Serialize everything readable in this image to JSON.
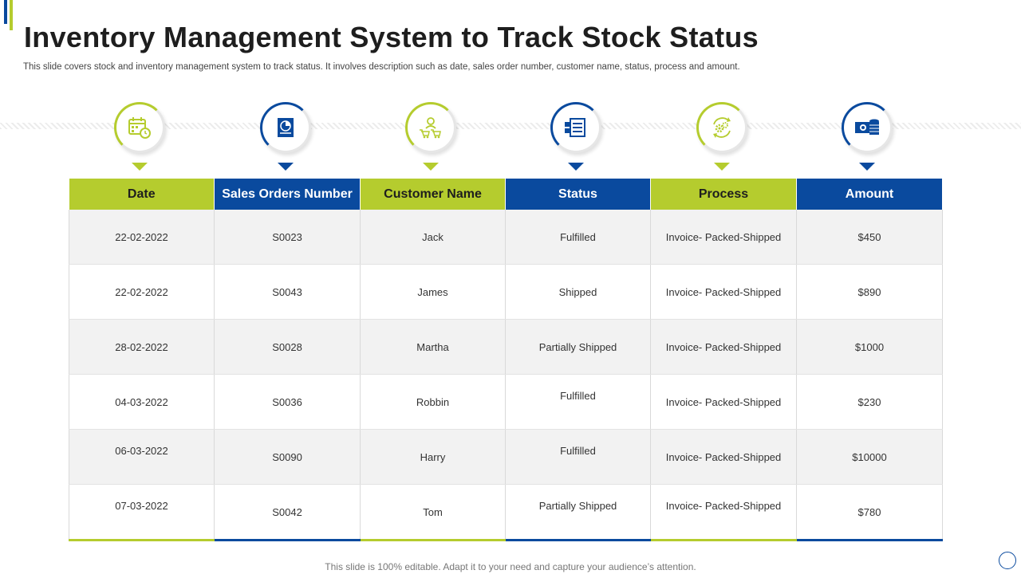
{
  "header": {
    "title": "Inventory Management System to Track Stock Status",
    "subtitle": "This slide covers stock and inventory management system to track status. It involves description such as date, sales order number, customer name, status, process and amount."
  },
  "icons": [
    "calendar-clock-icon",
    "pie-chart-document-icon",
    "customer-cart-icon",
    "invoice-list-icon",
    "process-gears-icon",
    "money-coins-icon"
  ],
  "table": {
    "headers": [
      "Date",
      "Sales Orders Number",
      "Customer Name",
      "Status",
      "Process",
      "Amount"
    ],
    "rows": [
      [
        "22-02-2022",
        "S0023",
        "Jack",
        "Fulfilled",
        "Invoice-  Packed-Shipped",
        "$450"
      ],
      [
        "22-02-2022",
        "S0043",
        "James",
        "Shipped",
        "Invoice-  Packed-Shipped",
        "$890"
      ],
      [
        "28-02-2022",
        "S0028",
        "Martha",
        "Partially Shipped",
        "Invoice-  Packed-Shipped",
        "$1000"
      ],
      [
        "04-03-2022",
        "S0036",
        "Robbin",
        "Fulfilled",
        "Invoice-  Packed-Shipped",
        "$230"
      ],
      [
        "06-03-2022",
        "S0090",
        "Harry",
        "Fulfilled",
        "Invoice-  Packed-Shipped",
        "$10000"
      ],
      [
        "07-03-2022",
        "S0042",
        "Tom",
        "Partially Shipped",
        "Invoice-  Packed-Shipped",
        "$780"
      ]
    ]
  },
  "footer": "This slide is 100% editable. Adapt it to your need and capture your audience’s attention.",
  "colors": {
    "green": "#b5cc2e",
    "blue": "#0a4a9e",
    "shade": "#f2f2f2"
  }
}
